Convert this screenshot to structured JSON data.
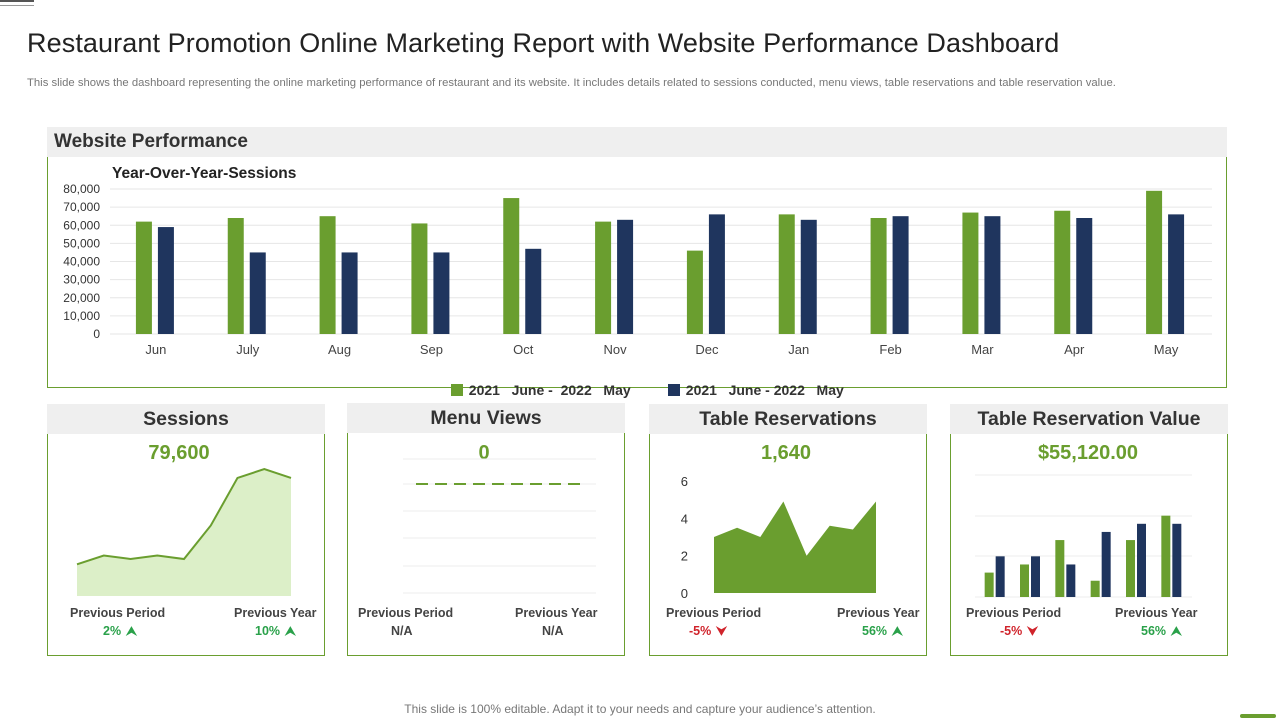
{
  "header": {
    "title": "Restaurant Promotion Online Marketing Report with Website Performance Dashboard",
    "subtitle": "This slide shows the dashboard representing the online marketing performance of restaurant and its website. It includes details related to sessions conducted, menu views, table reservations and table reservation value."
  },
  "website_performance": {
    "title": "Website Performance",
    "chart_title": "Year-Over-Year-Sessions",
    "legend": [
      {
        "label": "2021   June -  2022   May",
        "color": "#6a9e2f"
      },
      {
        "label": "2021   June - 2022   May",
        "color": "#1f355e"
      }
    ]
  },
  "colors": {
    "green": "#6a9e2f",
    "navy": "#1f355e",
    "light_green": "#dcefc8"
  },
  "chart_data": [
    {
      "type": "bar",
      "title": "Year-Over-Year-Sessions",
      "categories": [
        "Jun",
        "July",
        "Aug",
        "Sep",
        "Oct",
        "Nov",
        "Dec",
        "Jan",
        "Feb",
        "Mar",
        "Apr",
        "May"
      ],
      "series": [
        {
          "name": "2021   June -  2022   May",
          "values": [
            62000,
            64000,
            65000,
            61000,
            75000,
            62000,
            46000,
            66000,
            64000,
            67000,
            68000,
            79000
          ]
        },
        {
          "name": "2021   June - 2022   May",
          "values": [
            59000,
            45000,
            45000,
            45000,
            47000,
            63000,
            66000,
            63000,
            65000,
            65000,
            64000,
            66000
          ]
        }
      ],
      "yticks": [
        "80,000",
        "70,000",
        "60,000",
        "50,000",
        "40,000",
        "30,000",
        "20,000",
        "10,000",
        "0"
      ],
      "ylim": [
        0,
        80000
      ],
      "grid": true,
      "legend_position": "bottom"
    },
    {
      "type": "area",
      "title": "Sessions",
      "values": [
        18,
        23,
        21,
        23,
        21,
        40,
        67,
        72,
        67
      ],
      "ylim": [
        0,
        80
      ]
    },
    {
      "type": "line",
      "title": "Menu Views",
      "values": [
        0,
        0,
        0,
        0,
        0,
        0,
        0,
        0,
        0,
        0
      ]
    },
    {
      "type": "area",
      "title": "Table Reservations",
      "values": [
        3.0,
        3.5,
        3.0,
        4.9,
        2.0,
        3.6,
        3.4,
        4.9
      ],
      "yticks": [
        "6",
        "4",
        "2",
        "0"
      ],
      "ylim": [
        0,
        6
      ]
    },
    {
      "type": "bar",
      "title": "Table Reservation Value",
      "series": [
        {
          "name": "green",
          "values": [
            1.2,
            1.6,
            2.8,
            0.8,
            2.8,
            4.0
          ]
        },
        {
          "name": "navy",
          "values": [
            2.0,
            2.0,
            1.6,
            3.2,
            3.6,
            3.6
          ]
        }
      ],
      "ylim": [
        0,
        6
      ]
    }
  ],
  "cards": [
    {
      "title": "Sessions",
      "value": "79,600",
      "prev_period_label": "Previous Period",
      "prev_period_value": "2%",
      "prev_period_dir": "up",
      "prev_year_label": "Previous Year",
      "prev_year_value": "10%",
      "prev_year_dir": "up"
    },
    {
      "title": "Menu Views",
      "value": "0",
      "prev_period_label": "Previous Period",
      "prev_period_value": "N/A",
      "prev_period_dir": "none",
      "prev_year_label": "Previous Year",
      "prev_year_value": "N/A",
      "prev_year_dir": "none"
    },
    {
      "title": "Table Reservations",
      "value": "1,640",
      "prev_period_label": "Previous Period",
      "prev_period_value": "-5%",
      "prev_period_dir": "down",
      "prev_year_label": "Previous Year",
      "prev_year_value": "56%",
      "prev_year_dir": "up"
    },
    {
      "title": "Table Reservation Value",
      "value": "$55,120.00",
      "prev_period_label": "Previous Period",
      "prev_period_value": "-5%",
      "prev_period_dir": "down",
      "prev_year_label": "Previous Year",
      "prev_year_value": "56%",
      "prev_year_dir": "up"
    }
  ],
  "footer": {
    "note": "This slide is 100% editable. Adapt it to your needs and capture your audience’s attention."
  }
}
